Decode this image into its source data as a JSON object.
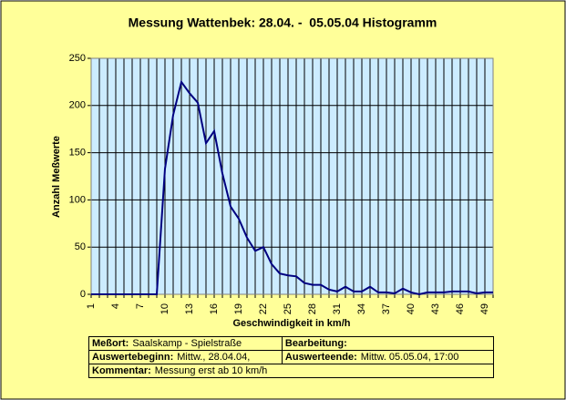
{
  "chart_data": {
    "type": "line",
    "title": "Messung Wattenbek: 28.04. -  05.05.04 Histogramm",
    "x_label": "Geschwindigkeit in km/h",
    "y_label": "Anzahl Meßwerte",
    "categories": [
      "1",
      null,
      null,
      "4",
      null,
      null,
      "7",
      null,
      null,
      "10",
      null,
      null,
      "13",
      null,
      null,
      "16",
      null,
      null,
      "19",
      null,
      null,
      "22",
      null,
      null,
      "25",
      null,
      null,
      "28",
      null,
      null,
      "31",
      null,
      null,
      "34",
      null,
      null,
      "37",
      null,
      null,
      "40",
      null,
      null,
      "43",
      null,
      null,
      "46",
      null,
      null,
      "49",
      null
    ],
    "series": [
      {
        "name": "Anzahl Meßwerte",
        "color": "#000080",
        "values": [
          0,
          0,
          0,
          0,
          0,
          0,
          0,
          0,
          0,
          133,
          190,
          225,
          213,
          203,
          160,
          173,
          128,
          93,
          80,
          60,
          46,
          50,
          32,
          22,
          20,
          19,
          12,
          10,
          10,
          5,
          3,
          8,
          3,
          3,
          8,
          2,
          2,
          1,
          6,
          2,
          0,
          2,
          2,
          2,
          3,
          3,
          3,
          1,
          2,
          2
        ]
      }
    ],
    "ylim": [
      0,
      250
    ],
    "yticks": [
      0,
      50,
      100,
      150,
      200,
      250
    ],
    "grid": true
  },
  "info_table": {
    "rows": [
      [
        {
          "label": "Meßort:",
          "value": "Saalskamp - Spielstraße"
        },
        {
          "label": "Bearbeitung:"
        }
      ],
      [
        {
          "label": "Auswertebeginn:",
          "value": "Mittw., 28.04.04,"
        },
        {
          "label": "Auswerteende:",
          "value": "Mittw. 05.05.04, 17:00"
        }
      ],
      [
        {
          "label": "Kommentar:",
          "value": "Messung erst ab 10 km/h"
        }
      ]
    ]
  }
}
